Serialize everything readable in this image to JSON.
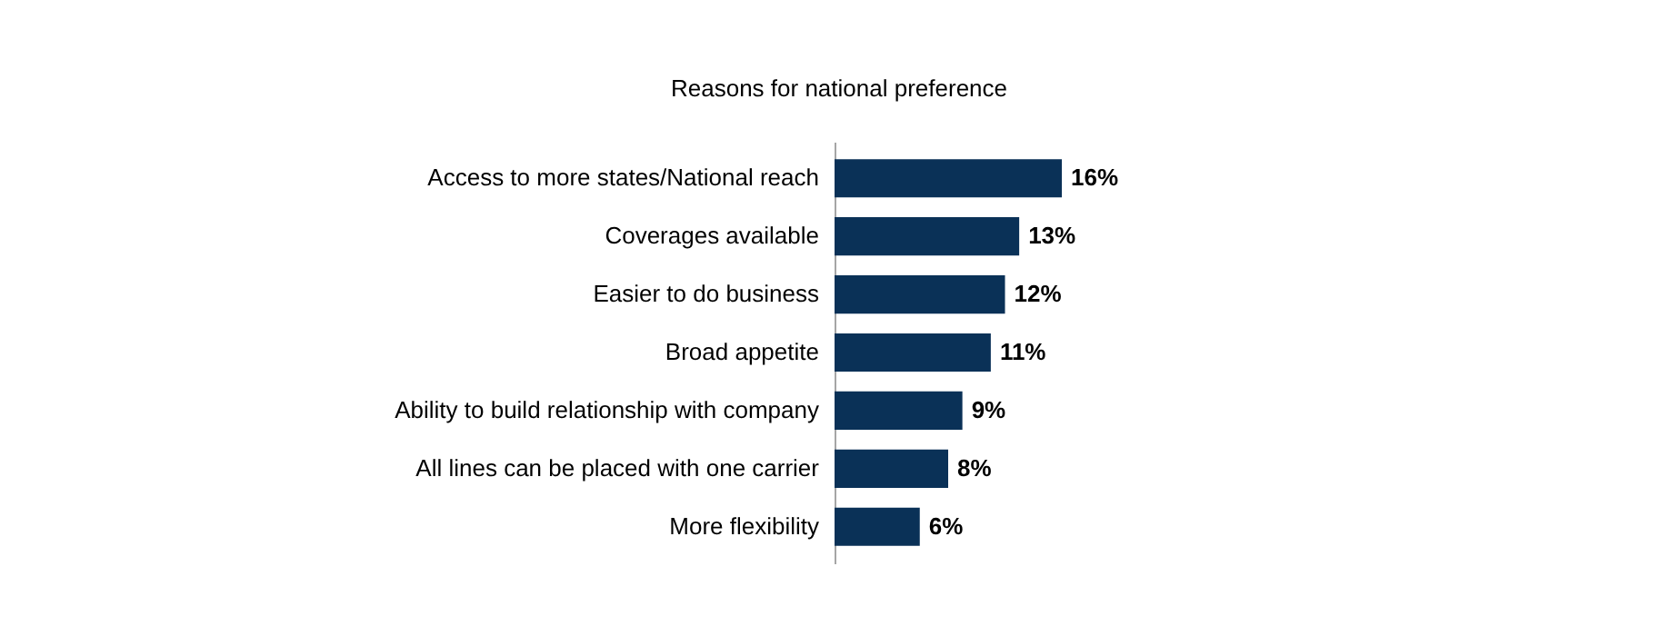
{
  "chart_data": {
    "type": "bar",
    "orientation": "horizontal",
    "title": "Reasons for national preference",
    "categories": [
      "Access to more states/National reach",
      "Coverages available",
      "Easier to do business",
      "Broad appetite",
      "Ability to build relationship with company",
      "All lines can be placed with one carrier",
      "More flexibility"
    ],
    "values": [
      16,
      13,
      12,
      11,
      9,
      8,
      6
    ],
    "color": "#0a3157",
    "data_labels": true,
    "value_labels": [
      "16%",
      "13%",
      "12%",
      "11%",
      "9%",
      "8%",
      "6%"
    ]
  }
}
